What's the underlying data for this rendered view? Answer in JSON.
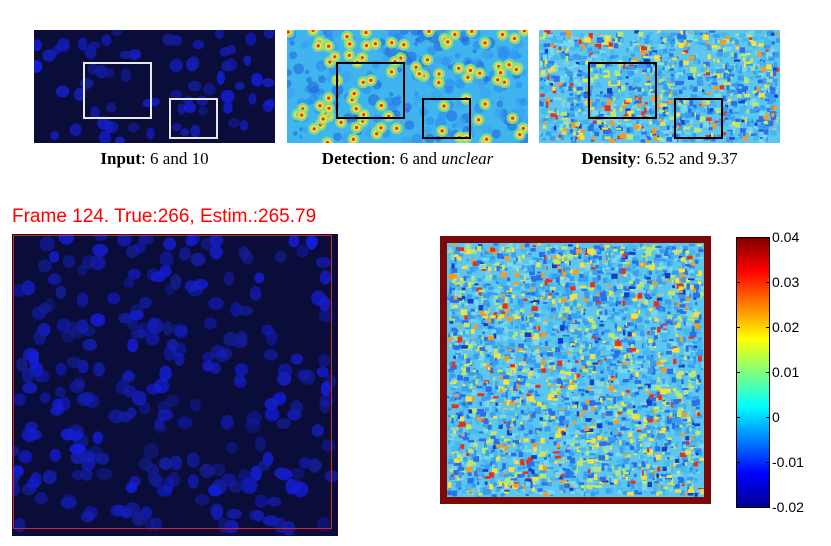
{
  "captions": {
    "input": {
      "bold": "Input",
      "rest": ": 6 and 10"
    },
    "detection": {
      "bold": "Detection",
      "rest": ": 6 and ",
      "italic": "unclear"
    },
    "density": {
      "bold": "Density",
      "rest": ": 6.52 and 9.37"
    }
  },
  "frame_title": "Frame 124. True:266, Estim.:265.79",
  "colorbar": {
    "ticks": [
      "0.04",
      "0.03",
      "0.02",
      "0.01",
      "0",
      "-0.01",
      "-0.02"
    ],
    "range": [
      -0.02,
      0.04
    ]
  },
  "colors": {
    "frame_title": "#ff0000",
    "density_border": "#7a0a0a",
    "input_box": "#e8e8e8",
    "map_box": "#000000"
  }
}
